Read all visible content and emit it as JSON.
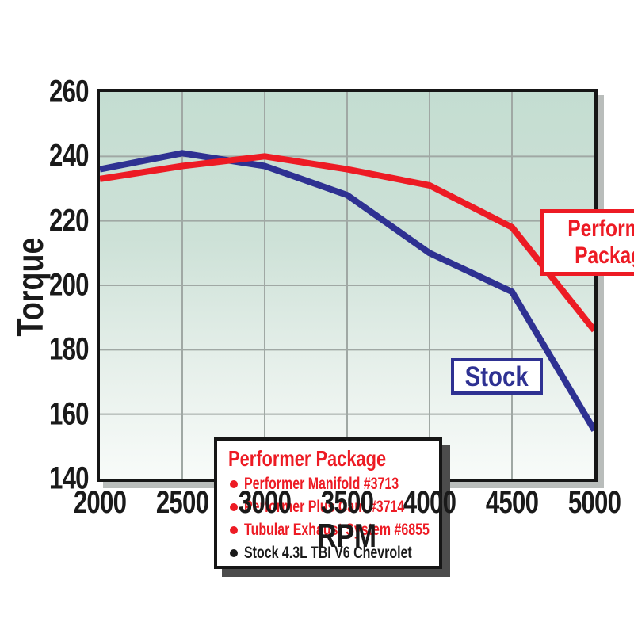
{
  "chart_data": {
    "type": "line",
    "title": "",
    "xlabel": "RPM",
    "ylabel": "Torque",
    "x": [
      2000,
      2500,
      3000,
      3500,
      4000,
      4500,
      5000
    ],
    "xticks": [
      "2000",
      "2500",
      "3000",
      "3500",
      "4000",
      "4500",
      "5000"
    ],
    "yticks": [
      "140",
      "160",
      "180",
      "200",
      "220",
      "240",
      "260"
    ],
    "xlim": [
      2000,
      5000
    ],
    "ylim": [
      140,
      260
    ],
    "grid": true,
    "legend_position": "inside-bottom-left",
    "series": [
      {
        "name": "Stock",
        "color": "#2e3192",
        "values": [
          236,
          241,
          237,
          228,
          210,
          198,
          155
        ]
      },
      {
        "name": "Performer Package",
        "color": "#ed1b24",
        "values": [
          233,
          237,
          240,
          236,
          231,
          218,
          186
        ]
      }
    ]
  },
  "axis": {
    "x_title": "RPM",
    "y_title": "Torque"
  },
  "annotations": {
    "performer_callout": "Performer Package",
    "stock_callout": "Stock"
  },
  "legend": {
    "title": "Performer Package",
    "items": [
      {
        "text": "Performer Manifold #3713",
        "color": "#ed1b24"
      },
      {
        "text": "Performer Plus Cam #3714",
        "color": "#ed1b24"
      },
      {
        "text": "Tubular Exhaust System #6855",
        "color": "#ed1b24"
      },
      {
        "text": "Stock 4.3L TBI V6 Chevrolet",
        "color": "#1a1a1a"
      }
    ]
  },
  "colors": {
    "stock_line": "#2e3192",
    "performer_line": "#ed1b24",
    "grid": "#a0a8a4",
    "plot_border": "#161616",
    "plot_bg_top": "#c4ddd1",
    "plot_bg_bottom": "#f8fbf9",
    "text": "#1a1a1a"
  }
}
